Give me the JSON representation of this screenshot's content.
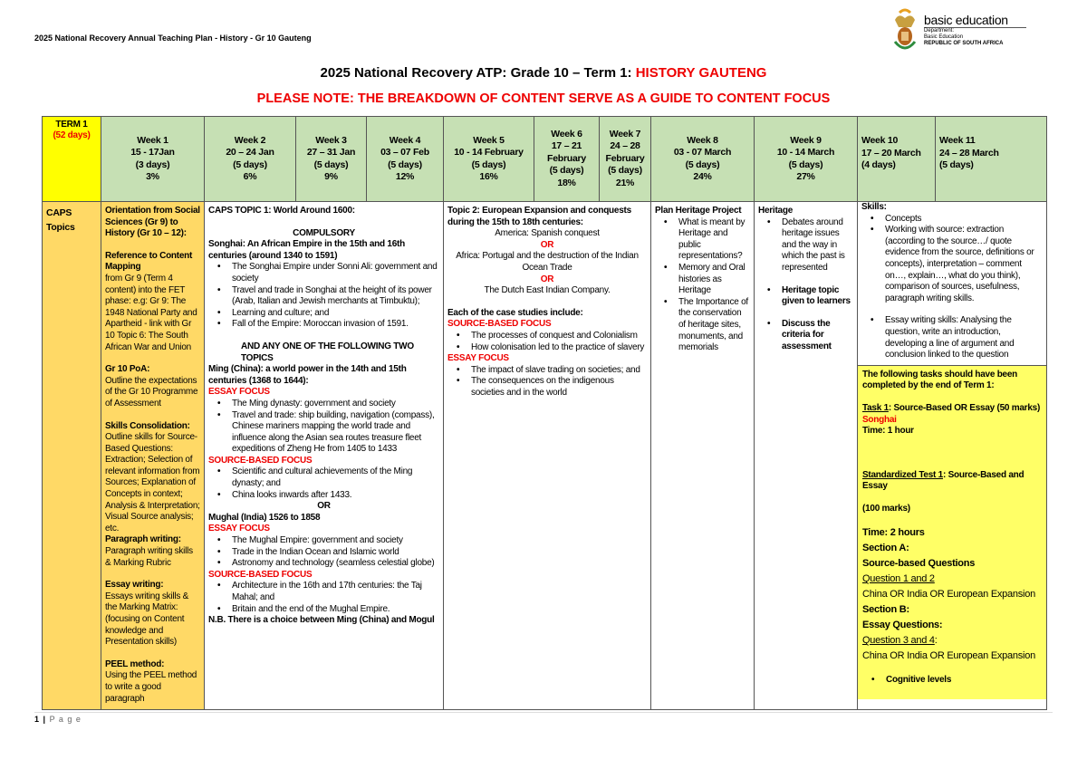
{
  "page_header": "2025 National Recovery Annual Teaching Plan - History - Gr 10 Gauteng",
  "logo": {
    "main": "basic education",
    "line1": "Department:",
    "line2": "Basic Education",
    "line3": "REPUBLIC OF SOUTH AFRICA"
  },
  "title": {
    "prefix": "2025 National Recovery ATP: Grade 10 – Term 1: ",
    "subject": "HISTORY GAUTENG"
  },
  "note": "PLEASE NOTE: THE BREAKDOWN OF CONTENT SERVE AS A GUIDE TO CONTENT FOCUS",
  "colors": {
    "header_green": "#c6e0b4",
    "term_yellow": "#ffff00",
    "caps_orange": "#ffd966",
    "tasks_yellow": "#ffff66",
    "accent_red": "#e00000"
  },
  "term": {
    "label": "TERM 1",
    "days": "(52 days)"
  },
  "weeks": [
    {
      "week": "Week 1",
      "dates": "15 - 17Jan",
      "days": "(3 days)",
      "pct": "3%"
    },
    {
      "week": "Week 2",
      "dates": "20 – 24 Jan",
      "days": "(5 days)",
      "pct": "6%"
    },
    {
      "week": "Week 3",
      "dates": "27 – 31 Jan",
      "days": "(5 days)",
      "pct": "9%"
    },
    {
      "week": "Week 4",
      "dates": "03 – 07 Feb",
      "days": "(5 days)",
      "pct": "12%"
    },
    {
      "week": "Week 5",
      "dates": "10 - 14 February",
      "days": "(5 days)",
      "pct": "16%"
    },
    {
      "week": "Week 6",
      "dates": "17 – 21 February",
      "days": "(5 days)",
      "pct": "18%"
    },
    {
      "week": "Week 7",
      "dates": "24 – 28 February",
      "days": "(5 days)",
      "pct": "21%"
    },
    {
      "week": "Week 8",
      "dates": "03 - 07 March",
      "days": "(5 days)",
      "pct": "24%"
    },
    {
      "week": "Week 9",
      "dates": "10 - 14 March",
      "days": "(5 days)",
      "pct": "27%"
    },
    {
      "week": "Week 10",
      "dates": "17 – 20 March",
      "days": "(4 days)",
      "pct": ""
    },
    {
      "week": "Week 11",
      "dates": "24 – 28 March",
      "days": "(5 days)",
      "pct": ""
    }
  ],
  "row_label": "CAPS Topics",
  "cells": {
    "week1": [
      {
        "k": "b",
        "t": "Orientation from Social Sciences (Gr 9) to History (Gr 10 – 12):"
      },
      {
        "k": "gap"
      },
      {
        "k": "b",
        "t": "Reference to Content Mapping"
      },
      {
        "k": "p",
        "t": "from Gr 9 (Term 4 content) into the FET phase: e.g: Gr 9: The 1948 National Party and Apartheid - link with Gr 10 Topic 6: The South African War and Union"
      },
      {
        "k": "gap"
      },
      {
        "k": "b",
        "t": "Gr 10 PoA:"
      },
      {
        "k": "p",
        "t": "Outline the expectations of the Gr 10 Programme of Assessment"
      },
      {
        "k": "gap"
      },
      {
        "k": "b",
        "t": "Skills Consolidation:"
      },
      {
        "k": "p",
        "t": "Outline skills for Source-Based Questions: Extraction; Selection of relevant information from Sources; Explanation of Concepts in context; Analysis & Interpretation; Visual Source analysis; etc."
      },
      {
        "k": "b",
        "t": "Paragraph writing:"
      },
      {
        "k": "p",
        "t": "Paragraph writing skills & Marking Rubric"
      },
      {
        "k": "gap"
      },
      {
        "k": "b",
        "t": "Essay writing:"
      },
      {
        "k": "p",
        "t": "Essays writing skills & the Marking Matrix: (focusing on Content knowledge and Presentation skills)"
      },
      {
        "k": "gap"
      },
      {
        "k": "b",
        "t": "PEEL method:"
      },
      {
        "k": "p",
        "t": "Using the PEEL method to write a good paragraph"
      }
    ],
    "weeks2_4": [
      {
        "k": "b",
        "t": "CAPS TOPIC 1: World Around 1600:"
      },
      {
        "k": "gap"
      },
      {
        "k": "bc",
        "t": "COMPULSORY"
      },
      {
        "k": "b",
        "t": "Songhai: An African Empire in the 15th and 16th centuries (around 1340 to 1591)"
      },
      {
        "k": "li",
        "t": "The Songhai Empire under Sonni Ali: government and society"
      },
      {
        "k": "li",
        "t": "Travel and trade in Songhai at the height of its power (Arab, Italian and Jewish merchants at Timbuktu);"
      },
      {
        "k": "li",
        "t": "Learning and culture; and"
      },
      {
        "k": "li",
        "t": "Fall of the Empire: Moroccan invasion of 1591."
      },
      {
        "k": "gap"
      },
      {
        "k": "bi",
        "t": "AND ANY ONE OF THE FOLLOWING TWO TOPICS"
      },
      {
        "k": "b",
        "t": "Ming (China): a world power in the 14th and 15th centuries (1368 to 1644):"
      },
      {
        "k": "r",
        "t": "ESSAY FOCUS"
      },
      {
        "k": "li",
        "t": "The Ming dynasty: government and society"
      },
      {
        "k": "li",
        "t": "Travel and trade: ship building, navigation (compass), Chinese mariners mapping the world trade and influence along the Asian sea routes treasure fleet expeditions of Zheng He from 1405 to 1433"
      },
      {
        "k": "r",
        "t": "SOURCE-BASED FOCUS"
      },
      {
        "k": "li",
        "t": "Scientific and cultural achievements of the Ming dynasty; and"
      },
      {
        "k": "li",
        "t": "China looks inwards after 1433."
      },
      {
        "k": "bc",
        "t": "OR"
      },
      {
        "k": "b",
        "t": "Mughal (India) 1526 to 1858"
      },
      {
        "k": "r",
        "t": "ESSAY FOCUS"
      },
      {
        "k": "li",
        "t": "The Mughal Empire: government and society"
      },
      {
        "k": "li",
        "t": "Trade in the Indian Ocean and Islamic world"
      },
      {
        "k": "li",
        "t": "Astronomy and technology (seamless celestial globe)"
      },
      {
        "k": "r",
        "t": "SOURCE-BASED FOCUS"
      },
      {
        "k": "li",
        "t": "Architecture in the 16th and 17th centuries: the Taj Mahal; and"
      },
      {
        "k": "li",
        "t": "Britain and the end of the Mughal Empire."
      },
      {
        "k": "b",
        "t": "N.B. There is a choice between Ming (China) and Mogul"
      }
    ],
    "weeks5_7": [
      {
        "k": "b",
        "t": "Topic 2: European Expansion and conquests during the 15th to 18th centuries:"
      },
      {
        "k": "c",
        "t": "America: Spanish conquest"
      },
      {
        "k": "rc",
        "t": "OR"
      },
      {
        "k": "c",
        "t": "Africa: Portugal and the destruction of the Indian Ocean Trade"
      },
      {
        "k": "rc",
        "t": "OR"
      },
      {
        "k": "c",
        "t": "The Dutch East Indian Company."
      },
      {
        "k": "gap"
      },
      {
        "k": "b",
        "t": "Each of the case studies include:"
      },
      {
        "k": "r",
        "t": "SOURCE-BASED FOCUS"
      },
      {
        "k": "li",
        "t": "The processes of conquest and Colonialism"
      },
      {
        "k": "li",
        "t": "How colonisation led to the practice of slavery"
      },
      {
        "k": "r",
        "t": "ESSAY FOCUS"
      },
      {
        "k": "li",
        "t": "The impact of slave trading on societies; and"
      },
      {
        "k": "li",
        "t": "The consequences on the indigenous societies and in the world"
      }
    ],
    "week8": [
      {
        "k": "b",
        "t": "Plan Heritage Project"
      },
      {
        "k": "li",
        "t": "What is meant by Heritage and public representations?"
      },
      {
        "k": "li",
        "t": "Memory and Oral histories as Heritage"
      },
      {
        "k": "li",
        "t": "The Importance of the conservation of heritage sites, monuments, and memorials"
      }
    ],
    "week9": [
      {
        "k": "b",
        "t": "Heritage"
      },
      {
        "k": "li",
        "t": "Debates around heritage issues and the way in which the past is represented"
      },
      {
        "k": "gap"
      },
      {
        "k": "lib",
        "t": "Heritage topic given to learners"
      },
      {
        "k": "gap"
      },
      {
        "k": "lib",
        "t": "Discuss the criteria for assessment"
      }
    ],
    "weeks10_11_skills": [
      {
        "k": "b",
        "t": "Skills:"
      },
      {
        "k": "li",
        "t": "Concepts"
      },
      {
        "k": "li",
        "t": "Working with source: extraction (according to the source…/ quote evidence from the source, definitions or concepts), interpretation – comment on…, explain…, what do you think), comparison of sources, usefulness, paragraph writing skills."
      },
      {
        "k": "gap"
      },
      {
        "k": "li",
        "t": "Essay writing skills: Analysing the question, write an introduction, developing a line of argument and conclusion linked to the question"
      }
    ],
    "weeks10_11_tasks": [
      {
        "k": "b",
        "t": "The following tasks should have been completed by the end of Term 1:"
      },
      {
        "k": "gap"
      },
      {
        "k": "bu",
        "t": "Task 1",
        "rest": ": Source-Based OR Essay (50 marks)"
      },
      {
        "k": "r",
        "t": "Songhai"
      },
      {
        "k": "b",
        "t": "Time: 1 hour"
      },
      {
        "k": "gap"
      },
      {
        "k": "gap"
      },
      {
        "k": "gap"
      },
      {
        "k": "bu",
        "t": "Standardized Test 1",
        "rest": ": Source-Based and Essay"
      },
      {
        "k": "gap"
      },
      {
        "k": "b",
        "t": "(100 marks)"
      },
      {
        "k": "gap"
      },
      {
        "k": "b2",
        "t": "Time: 2 hours"
      },
      {
        "k": "b2",
        "t": "Section A:"
      },
      {
        "k": "b2",
        "t": "Source-based Questions"
      },
      {
        "k": "u2",
        "t": "Question 1 and 2"
      },
      {
        "k": "p2",
        "t": "China OR India OR European Expansion"
      },
      {
        "k": "b2",
        "t": "Section B:"
      },
      {
        "k": "b2",
        "t": "Essay Questions:"
      },
      {
        "k": "u2",
        "t": "Question 3 and 4",
        "rest": ":"
      },
      {
        "k": "p2",
        "t": "China OR India OR European Expansion"
      },
      {
        "k": "gap"
      },
      {
        "k": "lib",
        "t": "Cognitive levels"
      }
    ]
  },
  "footer": {
    "page": "1",
    "label": "P a g e"
  }
}
